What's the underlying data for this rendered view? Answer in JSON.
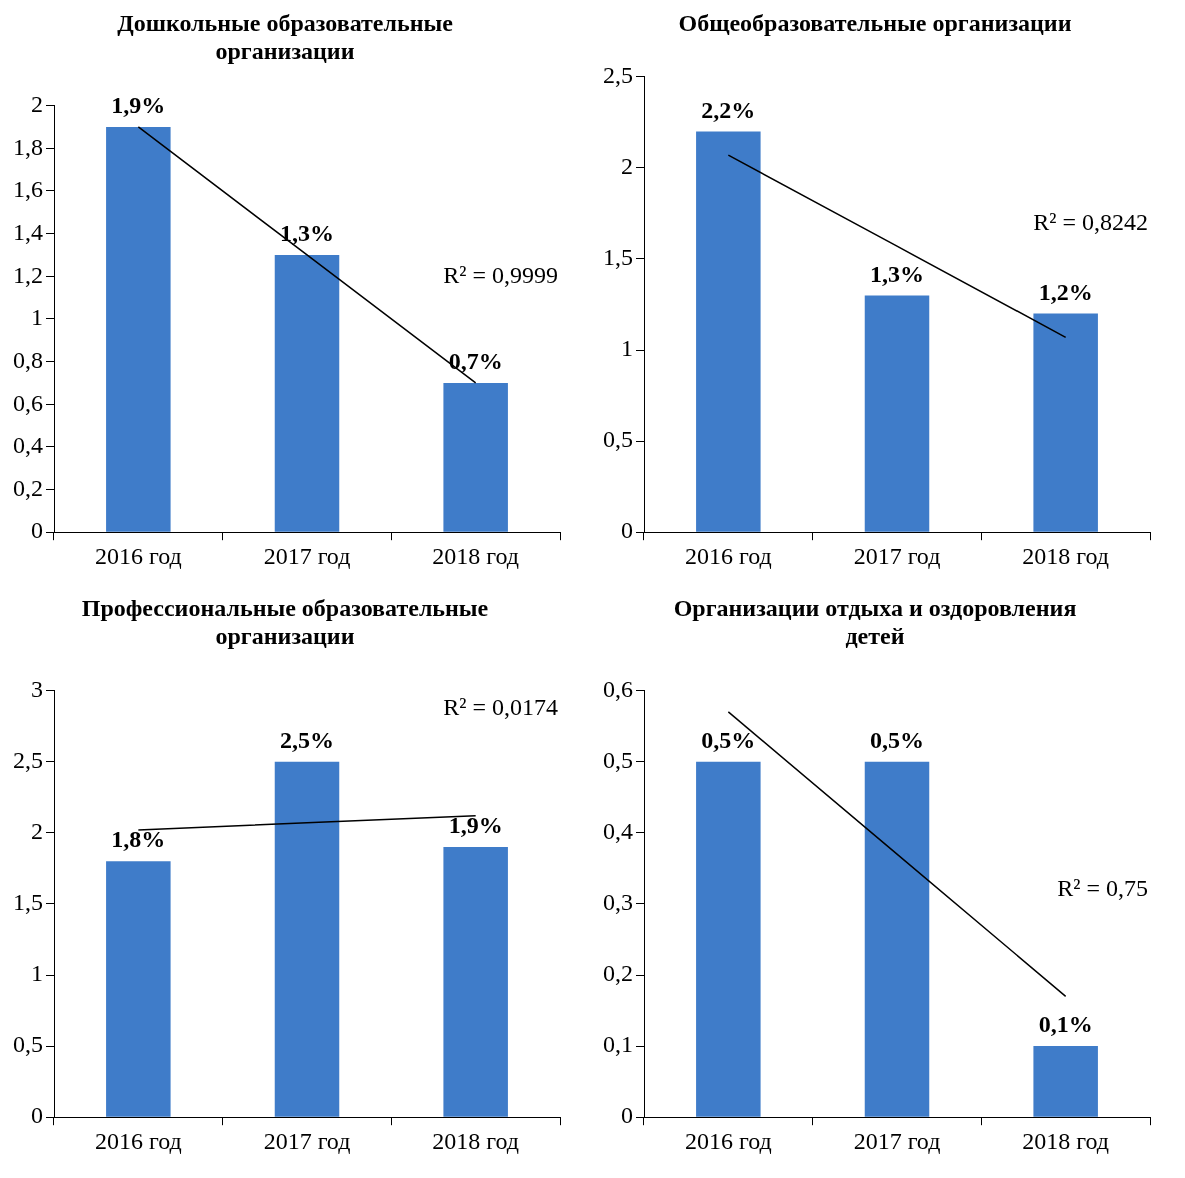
{
  "chart_data": [
    {
      "type": "bar",
      "title": "Дошкольные образовательные организации",
      "categories": [
        "2016 год",
        "2017 год",
        "2018 год"
      ],
      "series": [
        {
          "color": "#3f7cc9",
          "values": [
            1.9,
            1.3,
            0.7
          ],
          "value_labels": [
            "1,9%",
            "1,3%",
            "0,7%"
          ]
        },
        {
          "type": "line",
          "color": "#000000",
          "marker": "none",
          "values": [
            1.9,
            1.3,
            0.7
          ]
        }
      ],
      "ylim": [
        0,
        2
      ],
      "yticks": [
        0,
        {
          "value": 0.2,
          "label": "0,2"
        },
        {
          "value": 0.4,
          "label": "0,4"
        },
        {
          "value": 0.6,
          "label": "0,6"
        },
        {
          "value": 0.8,
          "label": "0,8"
        },
        1,
        {
          "value": 1.2,
          "label": "1,2"
        },
        {
          "value": 1.4,
          "label": "1,4"
        },
        {
          "value": 1.6,
          "label": "1,6"
        },
        {
          "value": 1.8,
          "label": "1,8"
        },
        2
      ],
      "annotations": [
        "R² = 0,9999"
      ],
      "legend": false,
      "grid": false
    },
    {
      "type": "bar",
      "title": "Общеобразовательные организации",
      "categories": [
        "2016 год",
        "2017 год",
        "2018 год"
      ],
      "series": [
        {
          "color": "#3f7cc9",
          "values": [
            2.2,
            1.3,
            1.2
          ],
          "value_labels": [
            "2,2%",
            "1,3%",
            "1,2%"
          ]
        },
        {
          "type": "line",
          "color": "#000000",
          "marker": "none",
          "values": [
            2.07,
            1.57,
            1.07
          ]
        }
      ],
      "ylim": [
        0,
        2.5
      ],
      "yticks": [
        0,
        {
          "value": 0.5,
          "label": "0,5"
        },
        1,
        {
          "value": 1.5,
          "label": "1,5"
        },
        2,
        {
          "value": 2.5,
          "label": "2,5"
        }
      ],
      "annotations": [
        "R² = 0,8242"
      ],
      "legend": false,
      "grid": false
    },
    {
      "type": "bar",
      "title": "Профессиональные образовательные организации",
      "categories": [
        "2016 год",
        "2017 год",
        "2018 год"
      ],
      "series": [
        {
          "color": "#3f7cc9",
          "values": [
            1.8,
            2.5,
            1.9
          ],
          "value_labels": [
            "1,8%",
            "2,5%",
            "1,9%"
          ]
        },
        {
          "type": "line",
          "color": "#000000",
          "marker": "none",
          "values": [
            2.02,
            2.07,
            2.12
          ]
        }
      ],
      "ylim": [
        0,
        3
      ],
      "yticks": [
        0,
        {
          "value": 0.5,
          "label": "0,5"
        },
        1,
        {
          "value": 1.5,
          "label": "1,5"
        },
        2,
        {
          "value": 2.5,
          "label": "2,5"
        },
        3
      ],
      "annotations": [
        "R² = 0,0174"
      ],
      "legend": false,
      "grid": false
    },
    {
      "type": "bar",
      "title": "Организации отдыха и оздоровления детей",
      "categories": [
        "2016 год",
        "2017 год",
        "2018 год"
      ],
      "series": [
        {
          "color": "#3f7cc9",
          "values": [
            0.5,
            0.5,
            0.1
          ],
          "value_labels": [
            "0,5%",
            "0,5%",
            "0,1%"
          ]
        },
        {
          "type": "line",
          "color": "#000000",
          "marker": "none",
          "values": [
            0.57,
            0.37,
            0.17
          ]
        }
      ],
      "ylim": [
        0,
        0.6
      ],
      "yticks": [
        0,
        {
          "value": 0.1,
          "label": "0,1"
        },
        {
          "value": 0.2,
          "label": "0,2"
        },
        {
          "value": 0.3,
          "label": "0,3"
        },
        {
          "value": 0.4,
          "label": "0,4"
        },
        {
          "value": 0.5,
          "label": "0,5"
        },
        {
          "value": 0.6,
          "label": "0,6"
        }
      ],
      "annotations": [
        "R² = 0,75"
      ],
      "legend": false,
      "grid": false
    }
  ]
}
